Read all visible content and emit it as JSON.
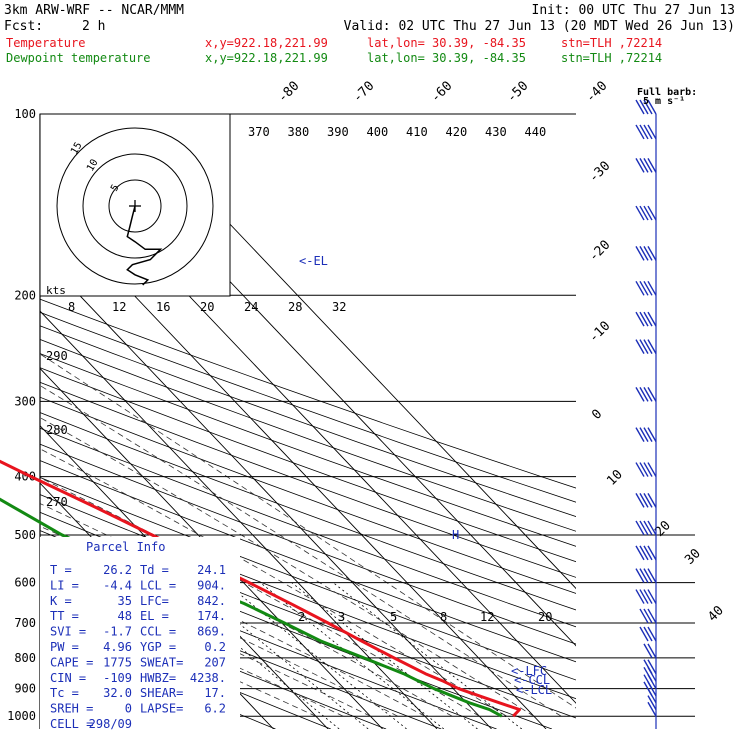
{
  "header": {
    "model": "3km ARW-WRF -- NCAR/MMM",
    "init": "Init: 00 UTC Thu 27 Jun 13",
    "fcst_label": "Fcst:",
    "fcst_value": "2 h",
    "valid": "Valid: 02 UTC Thu 27 Jun 13 (20 MDT Wed 26 Jun 13)",
    "temp_label": "Temperature",
    "dew_label": "Dewpoint temperature",
    "xy": "x,y=922.18,221.99",
    "latlon": "lat,lon= 30.39, -84.35",
    "station": "stn=TLH ,72214"
  },
  "colors": {
    "temperature": "#e8141e",
    "dewpoint": "#138a13",
    "text_blue": "#1c2fb8",
    "grid": "#000000"
  },
  "wind_panel": {
    "title": "Full barb:",
    "subtitle": "5 m s⁻¹"
  },
  "parcel_info": {
    "title": "Parcel Info",
    "rows": [
      [
        "T  =",
        "26.2",
        "Td =",
        "24.1"
      ],
      [
        "LI =",
        "-4.4",
        "LCL =",
        "904."
      ],
      [
        "K  =",
        "35",
        "LFC=",
        "842."
      ],
      [
        "TT =",
        "48",
        "EL =",
        "174."
      ],
      [
        "SVI =",
        "-1.7",
        "CCL =",
        "869."
      ],
      [
        "PW =",
        "4.96",
        "YGP =",
        "0.2"
      ],
      [
        "CAPE =",
        "1775",
        "SWEAT=",
        "207"
      ],
      [
        "CIN =",
        "-109",
        "HWBZ=",
        "4238."
      ],
      [
        "Tc =",
        "32.0",
        "SHEAR=",
        "17."
      ],
      [
        "SREH =",
        "0",
        "LAPSE=",
        "6.2"
      ],
      [
        "CELL =",
        "298/09",
        "",
        ""
      ]
    ]
  },
  "markers": {
    "el": "<-EL",
    "lfc": "<-LFC",
    "ccl": "<-CCL",
    "lcl": "<-LCL"
  },
  "hodograph": {
    "units": "kts",
    "ring_labels": [
      "5",
      "10",
      "15"
    ]
  },
  "chart_data": {
    "type": "line",
    "pressure_levels": [
      100,
      200,
      300,
      400,
      500,
      600,
      700,
      800,
      900,
      1000
    ],
    "temperature_axis_labels": [
      "-80",
      "-70",
      "-60",
      "-50",
      "-40",
      "-30",
      "-20",
      "-10",
      "0",
      "10",
      "20",
      "30",
      "40"
    ],
    "theta_labels_top": [
      "370",
      "380",
      "390",
      "400",
      "410",
      "420",
      "430",
      "440"
    ],
    "theta_labels_left": [
      "290",
      "280",
      "270"
    ],
    "mixing_ratio_labels": [
      "8",
      "12",
      "16",
      "20",
      "24",
      "28",
      "32"
    ],
    "mixing_ratio_labels_low": [
      "2",
      "3",
      "5",
      "8",
      "12",
      "20"
    ],
    "series": [
      {
        "name": "Temperature",
        "pressure": [
          1000,
          975,
          950,
          925,
          900,
          875,
          850,
          800,
          750,
          700,
          650,
          600,
          550,
          500,
          450,
          400,
          350,
          300,
          250,
          225,
          200,
          175,
          150,
          125,
          110,
          100
        ],
        "values": [
          26.2,
          28.5,
          26.0,
          23.5,
          21.0,
          19.5,
          17.5,
          14.5,
          11.5,
          8.5,
          5.0,
          1.0,
          -3.5,
          -8.5,
          -14.0,
          -20.5,
          -27.5,
          -36.0,
          -45.5,
          -51.0,
          -55.5,
          -61.5,
          -66.5,
          -72.5,
          -76.0,
          -78.0
        ]
      },
      {
        "name": "Dewpoint temperature",
        "pressure": [
          1000,
          975,
          950,
          925,
          900,
          875,
          850,
          800,
          750,
          700,
          650,
          600,
          550,
          500,
          450,
          400,
          350,
          300,
          250,
          225,
          200,
          175,
          150,
          125,
          110,
          100
        ],
        "values": [
          24.1,
          23.0,
          20.5,
          18.5,
          16.5,
          15.0,
          13.5,
          9.0,
          4.0,
          0.5,
          -3.5,
          -9.5,
          -19.0,
          -25.0,
          -29.0,
          -33.5,
          -41.0,
          -49.0,
          -58.0,
          -62.5,
          -66.5,
          -71.0,
          -75.5,
          -80.5,
          -85.0,
          -87.0
        ]
      }
    ],
    "hodograph_trace_kts": [
      [
        0,
        0
      ],
      [
        -1,
        4
      ],
      [
        -2,
        8
      ],
      [
        -3,
        12
      ],
      [
        0,
        14
      ],
      [
        4,
        17
      ],
      [
        10,
        17
      ],
      [
        6,
        21
      ],
      [
        -1,
        23
      ],
      [
        -3,
        25
      ],
      [
        0,
        27
      ],
      [
        5,
        29
      ],
      [
        3,
        31
      ]
    ],
    "wind_barbs_speed_ms": [
      1,
      2,
      2,
      3,
      3,
      3,
      4,
      4,
      5,
      6,
      7,
      8,
      9,
      10,
      10,
      12,
      13,
      14,
      15,
      15,
      15,
      14,
      13,
      12,
      11,
      10
    ]
  }
}
